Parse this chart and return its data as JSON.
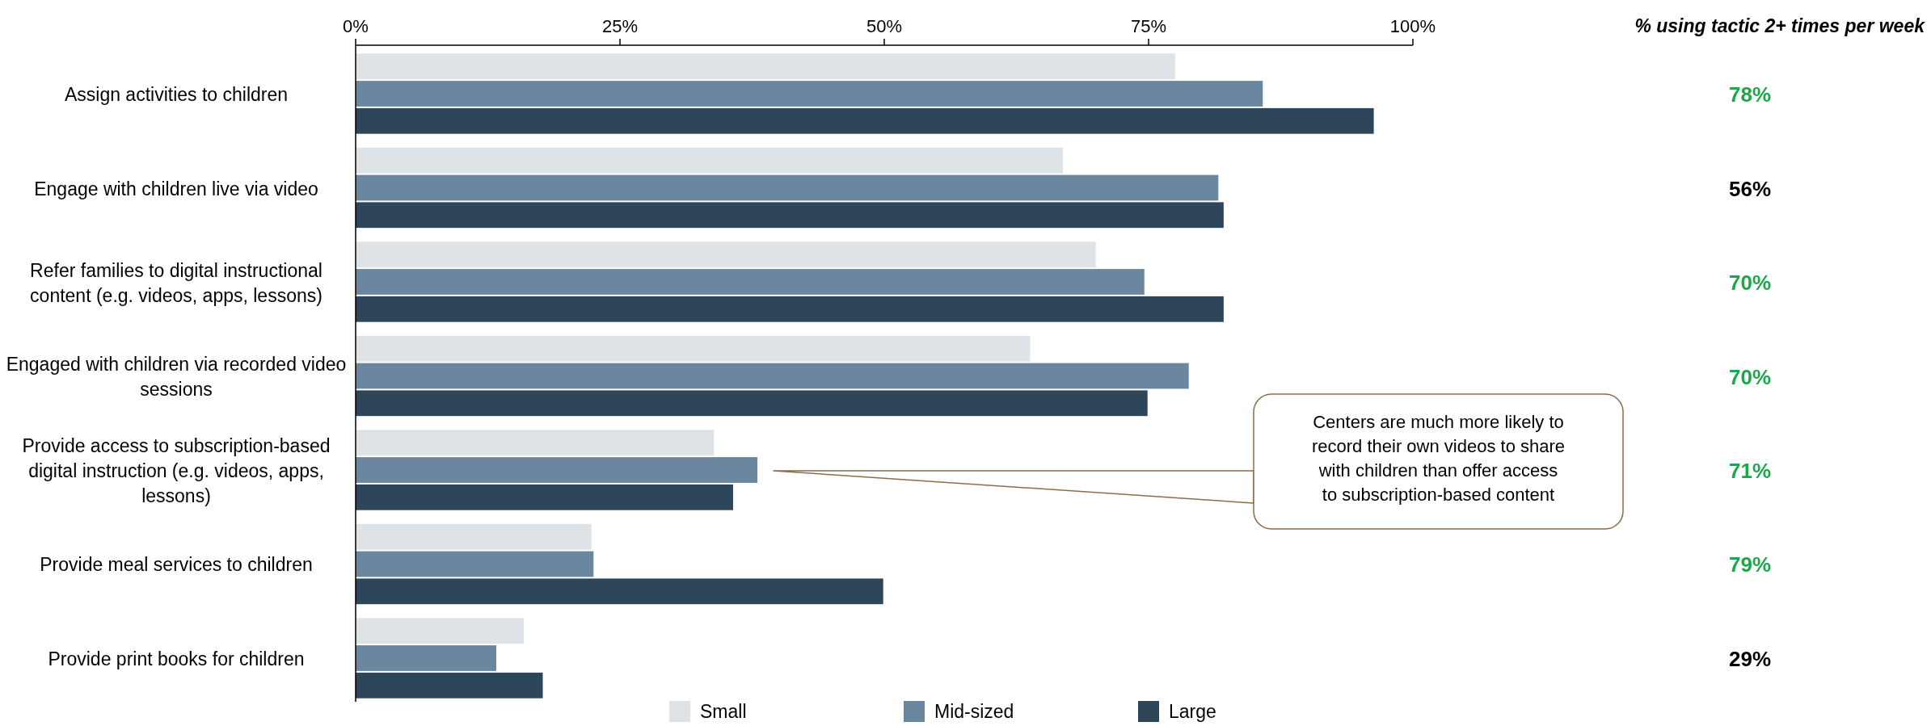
{
  "chart_data": [
    {
      "type": "bar",
      "orientation": "horizontal",
      "categories": [
        "Assign activities to children",
        "Engage with children live via video",
        "Refer families to digital instructional content (e.g. videos, apps, lessons)",
        "Engaged with children via recorded video sessions",
        "Provide access to subscription-based digital instruction (e.g. videos, apps, lessons)",
        "Provide meal services to children",
        "Provide print books for children"
      ],
      "series": [
        {
          "name": "Small",
          "color": "#dde3e6",
          "values": [
            77.5,
            66.9,
            70.0,
            63.8,
            33.9,
            22.3,
            15.9
          ]
        },
        {
          "name": "Mid-sized",
          "color": "#6b87a0",
          "values": [
            85.8,
            81.6,
            74.6,
            78.8,
            38.0,
            22.5,
            13.3
          ]
        },
        {
          "name": "Large",
          "color": "#2d4659",
          "values": [
            96.3,
            82.1,
            82.1,
            74.9,
            35.7,
            49.9,
            17.7
          ]
        }
      ],
      "xlim": [
        0,
        100
      ],
      "xticks": [
        {
          "value": 0,
          "label": "0%"
        },
        {
          "value": 25,
          "label": "25%"
        },
        {
          "value": 50,
          "label": "50%"
        },
        {
          "value": 75,
          "label": "75%"
        },
        {
          "value": 100,
          "label": "100%"
        }
      ],
      "grid": false,
      "legend": "bottom",
      "annotations": [
        "Centers are much more likely to record their own videos to share with children than offer access to subscription-based content"
      ]
    },
    {
      "type": "other",
      "title": "% using tactic 2+ times per week",
      "categories": [
        null,
        null,
        null,
        null,
        null,
        null,
        null
      ],
      "value_labels": [
        "78%",
        "56%",
        "70%",
        "70%",
        "71%",
        "79%",
        "29%"
      ],
      "colors": [
        "#1aa84a",
        "#000000",
        "#1aa84a",
        "#1aa84a",
        "#1aa84a",
        "#1aa84a",
        "#000000"
      ]
    }
  ]
}
